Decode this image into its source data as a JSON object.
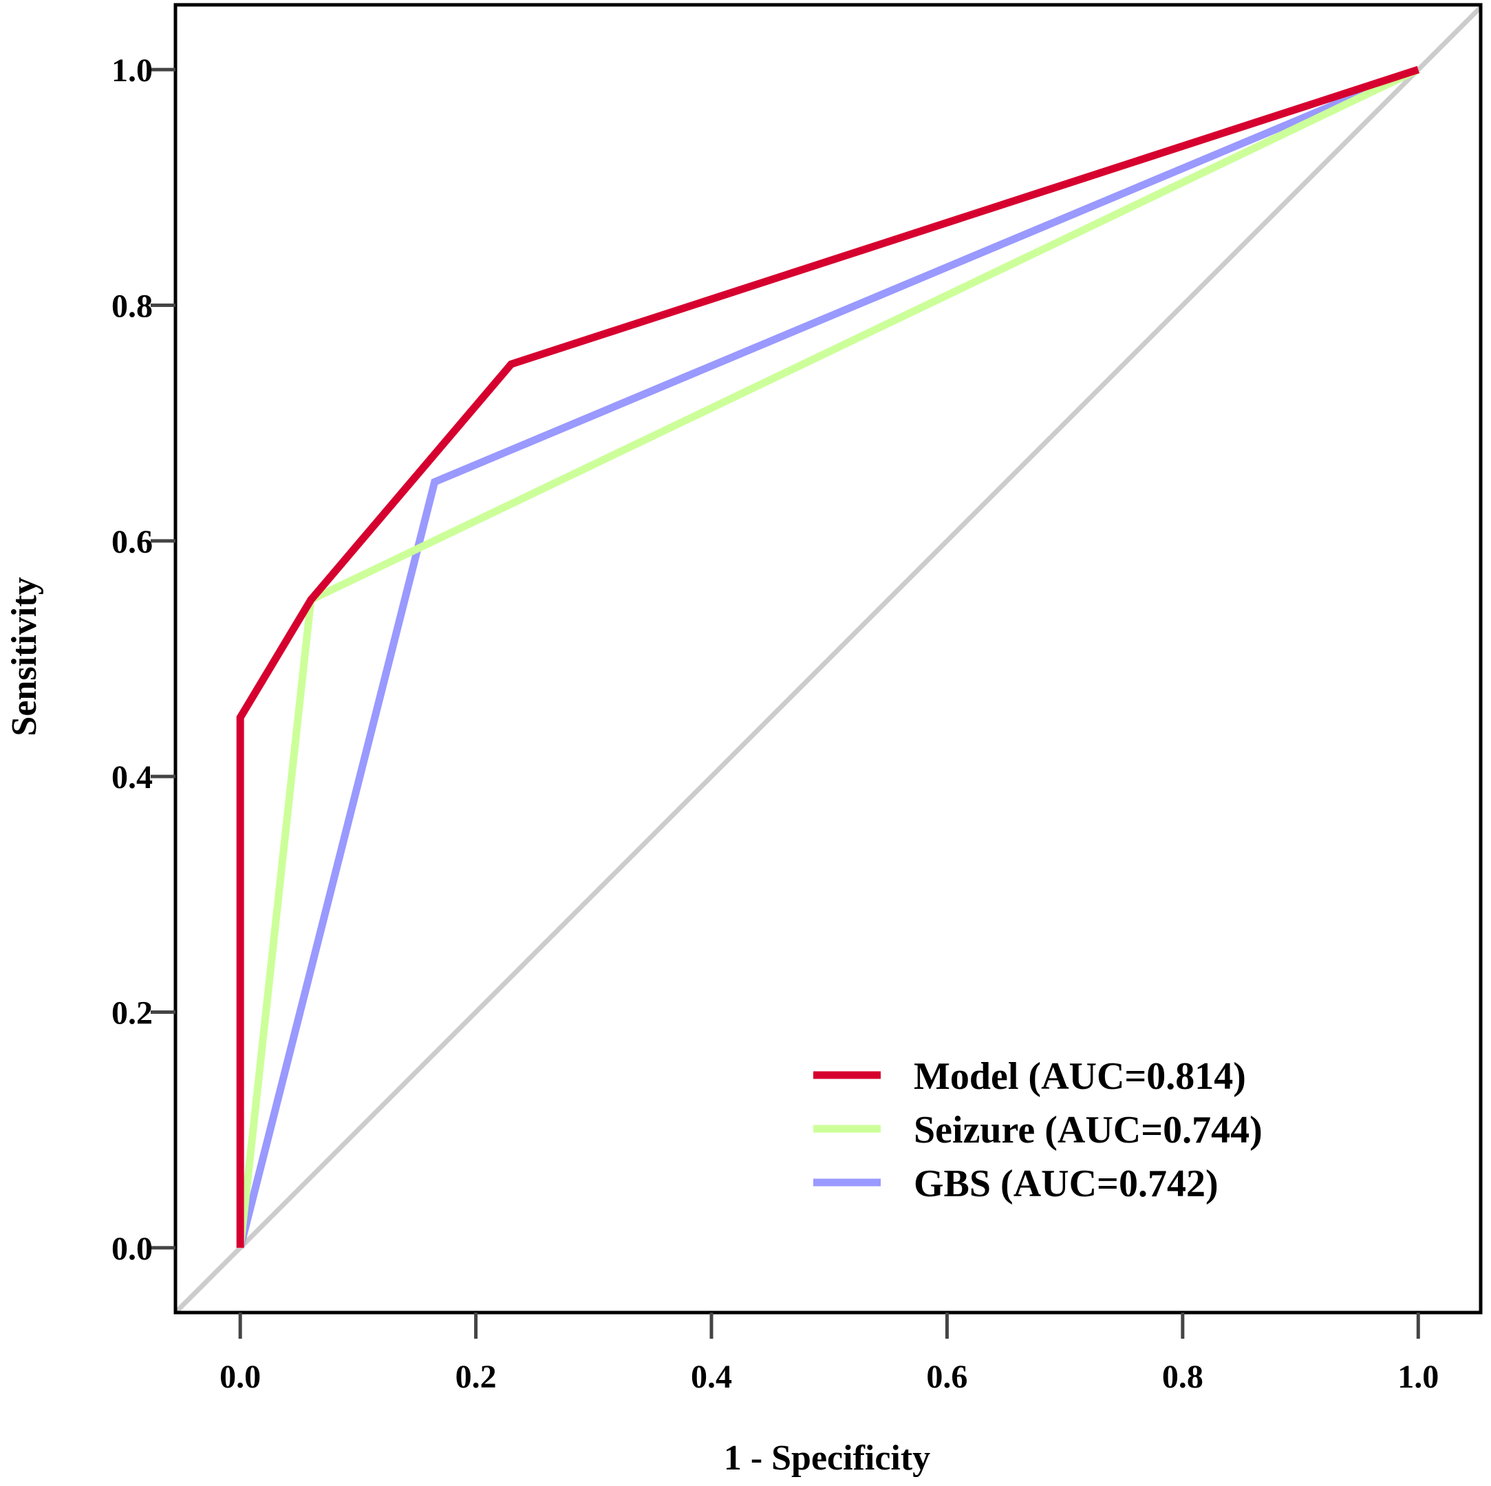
{
  "chart_data": {
    "type": "line",
    "title": "",
    "xlabel": "1 - Specificity",
    "ylabel": "Sensitivity",
    "xlim": [
      -0.055,
      1.053
    ],
    "ylim": [
      -0.055,
      1.055
    ],
    "xticks": [
      "0.0",
      "0.2",
      "0.4",
      "0.6",
      "0.8",
      "1.0"
    ],
    "yticks": [
      "0.0",
      "0.2",
      "0.4",
      "0.6",
      "0.8",
      "1.0"
    ],
    "grid": false,
    "legend_position": "bottom-right",
    "reference_line": {
      "x": [
        0,
        1
      ],
      "y": [
        0,
        1
      ],
      "color": "#cccccc"
    },
    "series": [
      {
        "name": "Model (AUC=0.814)",
        "color": "#d6002f",
        "x": [
          0,
          0,
          0.06,
          0.23,
          1
        ],
        "y": [
          0,
          0.45,
          0.55,
          0.75,
          1
        ]
      },
      {
        "name": "Seizure (AUC=0.744)",
        "color": "#ccff99",
        "x": [
          0,
          0.06,
          1
        ],
        "y": [
          0,
          0.55,
          1
        ]
      },
      {
        "name": "GBS (AUC=0.742)",
        "color": "#9999ff",
        "x": [
          0,
          0.165,
          1
        ],
        "y": [
          0,
          0.65,
          1
        ]
      }
    ]
  }
}
